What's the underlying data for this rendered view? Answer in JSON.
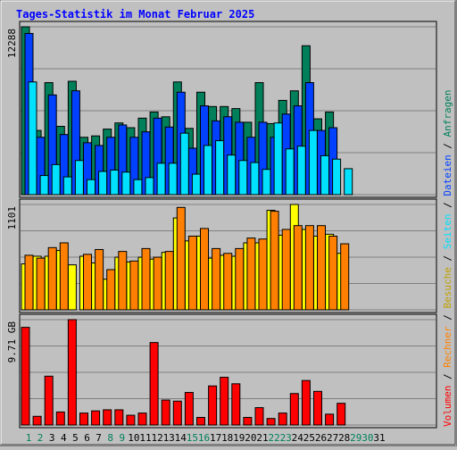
{
  "chart_data": {
    "type": "bar",
    "title": "Tages-Statistik im Monat Februar 2025",
    "categories": [
      "1",
      "2",
      "3",
      "4",
      "5",
      "6",
      "7",
      "8",
      "9",
      "10",
      "11",
      "12",
      "13",
      "14",
      "15",
      "16",
      "17",
      "18",
      "19",
      "20",
      "21",
      "22",
      "23",
      "24",
      "25",
      "26",
      "27",
      "28",
      "29",
      "30",
      "31"
    ],
    "weekend_days": [
      "1",
      "2",
      "8",
      "9",
      "15",
      "16",
      "22",
      "23",
      "29",
      "30"
    ],
    "panels": [
      {
        "id": "hits",
        "scale_label": "12288",
        "max": 12288,
        "series": [
          {
            "name": "Anfragen",
            "color": "#00805a",
            "values": [
              12288,
              4700,
              8200,
              5000,
              8300,
              4200,
              4300,
              4800,
              5250,
              4900,
              5600,
              6050,
              5700,
              8250,
              4850,
              7500,
              6450,
              6450,
              6300,
              5300,
              8200,
              5200,
              6900,
              7600,
              10900,
              5550,
              6050,
              0,
              0,
              0,
              0
            ]
          },
          {
            "name": "Dateien",
            "color": "#0040ff",
            "values": [
              11800,
              4200,
              7300,
              4400,
              7600,
              3800,
              3600,
              4200,
              5100,
              4200,
              4600,
              5600,
              4950,
              7500,
              3400,
              6500,
              5400,
              5700,
              5300,
              4200,
              5300,
              4200,
              5900,
              6500,
              8200,
              4700,
              4900,
              0,
              0,
              0,
              0
            ]
          },
          {
            "name": "Seiten",
            "color": "#00e0ff",
            "values": [
              8250,
              1400,
              2200,
              1300,
              2500,
              1100,
              1700,
              1800,
              1650,
              1100,
              1250,
              2300,
              2300,
              4500,
              1500,
              3600,
              3950,
              2900,
              2500,
              2350,
              1850,
              5250,
              3350,
              3550,
              4700,
              2850,
              2600,
              1900,
              0,
              0,
              0
            ]
          }
        ]
      },
      {
        "id": "visits",
        "scale_label": "1101",
        "max": 1101,
        "series": [
          {
            "name": "Besuche",
            "color": "#ffff00",
            "values": [
              480,
              560,
              560,
              620,
              470,
              560,
              490,
              320,
              550,
              500,
              550,
              530,
              600,
              960,
              720,
              770,
              540,
              570,
              560,
              700,
              700,
              1040,
              780,
              1101,
              840,
              770,
              790,
              590,
              0,
              0,
              0
            ]
          },
          {
            "name": "Rechner",
            "color": "#ff8000",
            "values": [
              570,
              540,
              650,
              700,
              0,
              580,
              630,
              420,
              610,
              510,
              640,
              550,
              610,
              1070,
              770,
              850,
              640,
              590,
              640,
              750,
              740,
              1030,
              840,
              880,
              880,
              880,
              770,
              690,
              0,
              0,
              0
            ]
          }
        ]
      },
      {
        "id": "volume",
        "scale_label": "9.71 GB",
        "max": 9.71,
        "series": [
          {
            "name": "Volumen",
            "color": "#ff0000",
            "values": [
              9.0,
              0.8,
              4.5,
              1.2,
              9.71,
              1.1,
              1.3,
              1.4,
              1.4,
              0.9,
              1.1,
              7.6,
              2.3,
              2.2,
              3.0,
              0.7,
              3.6,
              4.4,
              3.8,
              0.7,
              1.6,
              0.6,
              1.1,
              2.9,
              4.1,
              3.1,
              1.0,
              2.0,
              0,
              0,
              0
            ]
          }
        ]
      }
    ],
    "legend_separator": " / "
  }
}
